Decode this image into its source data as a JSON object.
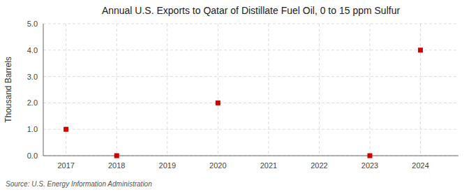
{
  "chart_data": {
    "type": "scatter",
    "title": "Annual U.S. Exports to Qatar of Distillate Fuel Oil, 0 to 15 ppm Sulfur",
    "ylabel": "Thousand Barrels",
    "annotations": [
      "Source: U.S. Energy Information Administration"
    ],
    "x": [
      2017,
      2018,
      2019,
      2020,
      2021,
      2022,
      2023,
      2024
    ],
    "values": [
      1.0,
      0.0,
      null,
      2.0,
      null,
      null,
      0.0,
      4.0
    ],
    "color": "#cc0000",
    "marker": "square",
    "grid": true,
    "xlim": [
      2016.55,
      2024.75
    ],
    "xticks": [
      2017,
      2018,
      2019,
      2020,
      2021,
      2022,
      2023,
      2024
    ],
    "ylim": [
      0.0,
      5.0
    ],
    "yticks": [
      {
        "value": 0.0,
        "label": "0.0"
      },
      {
        "value": 1.0,
        "label": "1.0"
      },
      {
        "value": 2.0,
        "label": "2.0"
      },
      {
        "value": 3.0,
        "label": "3.0"
      },
      {
        "value": 4.0,
        "label": "4.0"
      },
      {
        "value": 5.0,
        "label": "5.0"
      }
    ]
  }
}
